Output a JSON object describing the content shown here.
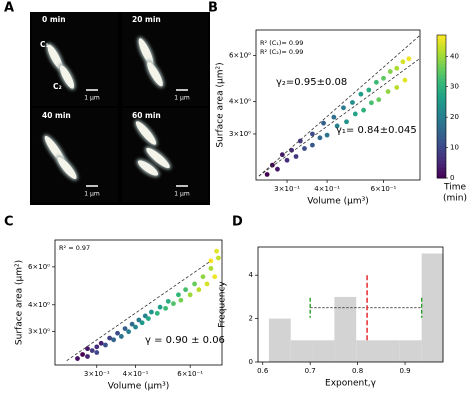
{
  "micrographs": {
    "panel": "A",
    "frames": [
      {
        "label": "0 min",
        "scale": "1 µm"
      },
      {
        "label": "20 min",
        "scale": "1 µm"
      },
      {
        "label": "40 min",
        "scale": "1 µm"
      },
      {
        "label": "60 min",
        "scale": "1 µm"
      }
    ],
    "cell_labels": [
      "C₁",
      "C₂"
    ]
  },
  "chart_data": [
    {
      "type": "scatter",
      "panel": "B",
      "xlabel": "Volume (µm³)",
      "ylabel": "Surface area (µm²)",
      "xscale": "log",
      "yscale": "log",
      "xlim": [
        0.24,
        0.78
      ],
      "ylim": [
        2.0,
        7.5
      ],
      "xticks": [
        {
          "value": 0.3,
          "label": "3×10⁻¹"
        },
        {
          "value": 0.4,
          "label": "4×10⁻¹"
        },
        {
          "value": 0.6,
          "label": "6×10⁻¹"
        }
      ],
      "yticks": [
        {
          "value": 3,
          "label": "3×10⁰"
        },
        {
          "value": 4,
          "label": "4×10⁰"
        },
        {
          "value": 6,
          "label": "6×10⁰"
        }
      ],
      "colormap": "viridis",
      "clim": [
        0,
        47
      ],
      "colorbar": {
        "ticks": [
          0,
          10,
          20,
          30,
          40
        ],
        "label_lines": [
          "Time",
          "(min)"
        ]
      },
      "series": [
        {
          "x": [
            0.26,
            0.28,
            0.3,
            0.32,
            0.34,
            0.36,
            0.38,
            0.4,
            0.43,
            0.46,
            0.49,
            0.52,
            0.55,
            0.58,
            0.62,
            0.66,
            0.7
          ],
          "values": [
            2.1,
            2.2,
            2.38,
            2.46,
            2.64,
            2.72,
            2.9,
            2.97,
            3.22,
            3.34,
            3.58,
            3.7,
            3.95,
            4.06,
            4.36,
            4.52,
            4.82
          ],
          "time": [
            0,
            3,
            6,
            8,
            11,
            13,
            16,
            18,
            21,
            24,
            27,
            30,
            33,
            36,
            39,
            42,
            45
          ]
        },
        {
          "x": [
            0.27,
            0.29,
            0.31,
            0.33,
            0.36,
            0.39,
            0.42,
            0.45,
            0.48,
            0.51,
            0.54,
            0.57,
            0.6,
            0.63,
            0.66,
            0.69,
            0.72
          ],
          "values": [
            2.28,
            2.5,
            2.6,
            2.82,
            3.0,
            3.3,
            3.48,
            3.78,
            3.96,
            4.26,
            4.42,
            4.73,
            4.9,
            5.2,
            5.35,
            5.67,
            5.82
          ],
          "time": [
            0,
            3,
            6,
            8,
            11,
            14,
            17,
            20,
            23,
            26,
            29,
            32,
            35,
            38,
            41,
            44,
            46
          ]
        }
      ],
      "fit_lines": [
        {
          "x": [
            0.245,
            0.78
          ],
          "y": [
            2.07,
            7.16
          ]
        },
        {
          "x": [
            0.245,
            0.78
          ],
          "y": [
            2.07,
            5.84
          ]
        }
      ],
      "annotations": [
        "R² (C₁)= 0.99",
        "R² (C₂)= 0.99",
        "γ₂=0.95±0.08",
        "γ₁= 0.84±0.045"
      ]
    },
    {
      "type": "scatter",
      "panel": "C",
      "xlabel": "Volume (µm³)",
      "ylabel": "Surface area (µm²)",
      "xscale": "log",
      "yscale": "log",
      "xlim": [
        0.22,
        0.76
      ],
      "ylim": [
        2.1,
        8.0
      ],
      "xticks": [
        {
          "value": 0.3,
          "label": "3×10⁻¹"
        },
        {
          "value": 0.4,
          "label": "4×10⁻¹"
        },
        {
          "value": 0.6,
          "label": "6×10⁻¹"
        }
      ],
      "yticks": [
        {
          "value": 3,
          "label": "3×10⁰"
        },
        {
          "value": 4,
          "label": "4×10⁰"
        },
        {
          "value": 6,
          "label": "6×10⁰"
        }
      ],
      "colormap": "viridis",
      "clim": [
        0,
        47
      ],
      "series": [
        {
          "x": [
            0.26,
            0.27,
            0.28,
            0.28,
            0.29,
            0.3,
            0.3,
            0.31,
            0.32,
            0.33,
            0.34,
            0.35,
            0.36,
            0.37,
            0.38,
            0.39,
            0.4,
            0.41,
            0.42,
            0.43,
            0.44,
            0.45,
            0.47,
            0.48,
            0.5,
            0.51,
            0.53,
            0.55,
            0.56,
            0.58,
            0.6,
            0.62,
            0.64,
            0.66,
            0.68,
            0.7,
            0.72,
            0.74,
            0.73,
            0.7
          ],
          "values": [
            2.25,
            2.35,
            2.3,
            2.5,
            2.45,
            2.55,
            2.4,
            2.65,
            2.6,
            2.8,
            2.75,
            2.95,
            2.85,
            3.1,
            3.0,
            3.25,
            3.15,
            3.4,
            3.3,
            3.55,
            3.45,
            3.7,
            3.65,
            3.9,
            3.85,
            4.15,
            4.05,
            4.45,
            4.2,
            4.7,
            4.45,
            5.0,
            4.7,
            5.4,
            5.0,
            5.9,
            5.4,
            6.6,
            7.1,
            6.4
          ],
          "time": [
            2,
            0,
            5,
            3,
            8,
            6,
            10,
            4,
            12,
            9,
            15,
            11,
            18,
            14,
            20,
            16,
            22,
            19,
            25,
            21,
            28,
            24,
            30,
            26,
            32,
            29,
            34,
            31,
            37,
            33,
            40,
            36,
            42,
            39,
            44,
            41,
            46,
            43,
            45,
            47
          ]
        }
      ],
      "fit_lines": [
        {
          "x": [
            0.24,
            0.7
          ],
          "y": [
            2.2,
            6.4
          ]
        }
      ],
      "annotations": [
        "R² = 0.97",
        "γ = 0.90 ± 0.06"
      ]
    },
    {
      "type": "histogram",
      "panel": "D",
      "xlabel": "Exponent,γ",
      "ylabel": "Frequency",
      "xlim": [
        0.59,
        0.98
      ],
      "ylim": [
        0,
        5.3
      ],
      "xticks": [
        0.6,
        0.7,
        0.8,
        0.9
      ],
      "yticks": [
        0,
        2,
        4
      ],
      "bins": [
        0.613,
        0.659,
        0.705,
        0.751,
        0.797,
        0.843,
        0.889,
        0.935,
        0.981
      ],
      "counts": [
        2,
        1,
        1,
        3,
        1,
        1,
        1,
        5
      ],
      "color": "#d3d3d3",
      "mean_line": {
        "x": 0.82,
        "y": [
          1.0,
          4.1
        ],
        "color": "#e8383d"
      },
      "sd_range": {
        "x": [
          0.7,
          0.935
        ],
        "y": 2.5,
        "color": "#2ca02c"
      }
    }
  ]
}
